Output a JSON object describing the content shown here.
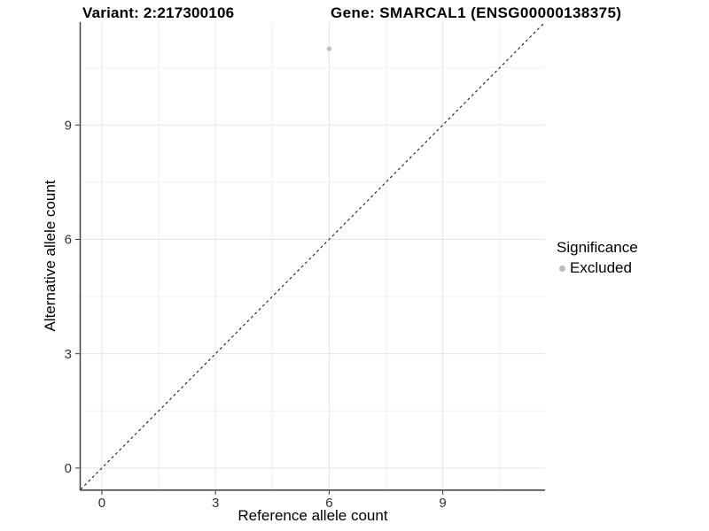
{
  "header": {
    "variant_title": "Variant: 2:217300106",
    "gene_title": "Gene: SMARCAL1 (ENSG00000138375)"
  },
  "chart_data": {
    "type": "scatter",
    "title_left": "Variant: 2:217300106",
    "title_right": "Gene: SMARCAL1 (ENSG00000138375)",
    "xlabel": "Reference allele count",
    "ylabel": "Alternative allele count",
    "xlim": [
      -0.56,
      11.7
    ],
    "ylim": [
      -0.56,
      11.7
    ],
    "x_major_ticks": [
      0,
      3,
      6,
      9
    ],
    "y_major_ticks": [
      0,
      3,
      6,
      9
    ],
    "x_minor_ticks": [
      1.5,
      4.5,
      7.5,
      10.5
    ],
    "y_minor_ticks": [
      1.5,
      4.5,
      7.5,
      10.5
    ],
    "grid": true,
    "identity_line": {
      "style": "dashed",
      "x1": -0.56,
      "y1": -0.56,
      "x2": 11.7,
      "y2": 11.7,
      "color": "#1a1a1a"
    },
    "points": [
      {
        "x": 6,
        "y": 11,
        "significance": "Excluded",
        "color": "#bdbdbd",
        "radius": 2.7
      }
    ],
    "legend": {
      "title": "Significance",
      "position": "right",
      "items": [
        {
          "label": "Excluded",
          "color": "#bdbdbd"
        }
      ]
    },
    "colors": {
      "grid_major": "#e4e4e4",
      "grid_minor": "#f1f1f1",
      "axis_line": "#4a4a4a",
      "tick_mark": "#333333",
      "tick_label": "#333333",
      "point": "#bdbdbd"
    }
  }
}
